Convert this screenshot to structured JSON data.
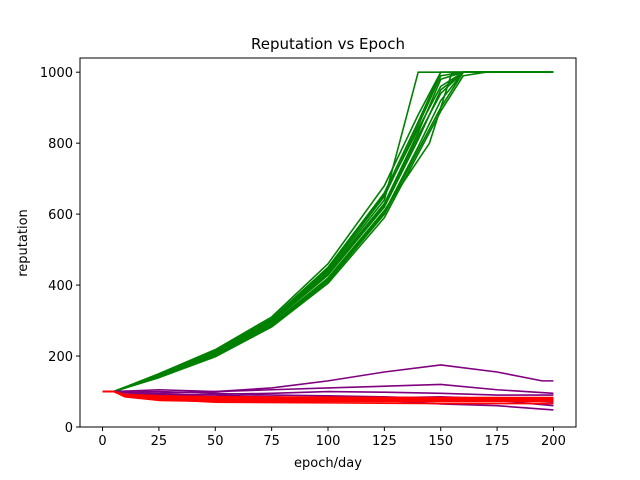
{
  "chart_data": {
    "type": "line",
    "title": "Reputation vs Epoch",
    "xlabel": "epoch/day",
    "ylabel": "reputation",
    "xlim": [
      -10,
      210
    ],
    "ylim": [
      0,
      1040
    ],
    "xticks": [
      0,
      25,
      50,
      75,
      100,
      125,
      150,
      175,
      200
    ],
    "yticks": [
      0,
      200,
      400,
      600,
      800,
      1000
    ],
    "grid": false,
    "legend": "none",
    "colors": {
      "green": "#008000",
      "purple": "#800080",
      "red": "#ff0000"
    },
    "series": [
      {
        "color": "green",
        "x": [
          0,
          5,
          25,
          50,
          75,
          100,
          125,
          140,
          150,
          160,
          170,
          200
        ],
        "y": [
          100,
          100,
          145,
          210,
          300,
          440,
          640,
          1000,
          1000,
          1000,
          1000,
          1000
        ]
      },
      {
        "color": "green",
        "x": [
          0,
          5,
          25,
          50,
          75,
          100,
          125,
          145,
          155,
          165,
          200
        ],
        "y": [
          100,
          100,
          142,
          205,
          290,
          420,
          610,
          800,
          1000,
          1000,
          1000
        ]
      },
      {
        "color": "green",
        "x": [
          0,
          5,
          25,
          50,
          75,
          100,
          125,
          140,
          150,
          160,
          170,
          200
        ],
        "y": [
          100,
          100,
          148,
          215,
          305,
          450,
          660,
          860,
          1000,
          1000,
          1000,
          1000
        ]
      },
      {
        "color": "green",
        "x": [
          0,
          5,
          25,
          50,
          75,
          100,
          125,
          140,
          150,
          160,
          170,
          200
        ],
        "y": [
          100,
          100,
          140,
          200,
          285,
          410,
          600,
          780,
          900,
          1000,
          1000,
          1000
        ]
      },
      {
        "color": "green",
        "x": [
          0,
          5,
          25,
          50,
          75,
          100,
          125,
          140,
          150,
          160,
          170,
          200
        ],
        "y": [
          100,
          100,
          146,
          212,
          298,
          435,
          630,
          830,
          980,
          1000,
          1000,
          1000
        ]
      },
      {
        "color": "green",
        "x": [
          0,
          5,
          25,
          50,
          75,
          100,
          125,
          140,
          150,
          160,
          170,
          200
        ],
        "y": [
          100,
          100,
          143,
          207,
          295,
          428,
          620,
          810,
          950,
          1000,
          1000,
          1000
        ]
      },
      {
        "color": "green",
        "x": [
          0,
          5,
          25,
          50,
          75,
          100,
          125,
          140,
          150,
          160,
          170,
          200
        ],
        "y": [
          100,
          100,
          150,
          218,
          310,
          460,
          680,
          880,
          1000,
          1000,
          1000,
          1000
        ]
      },
      {
        "color": "green",
        "x": [
          0,
          5,
          25,
          50,
          75,
          100,
          125,
          140,
          150,
          160,
          170,
          200
        ],
        "y": [
          100,
          100,
          139,
          198,
          282,
          405,
          590,
          770,
          890,
          990,
          1000,
          1000
        ]
      },
      {
        "color": "green",
        "x": [
          0,
          5,
          25,
          50,
          75,
          100,
          125,
          140,
          150,
          160,
          170,
          200
        ],
        "y": [
          100,
          100,
          144,
          209,
          300,
          445,
          650,
          850,
          990,
          1000,
          1000,
          1000
        ]
      },
      {
        "color": "green",
        "x": [
          0,
          5,
          25,
          50,
          75,
          100,
          125,
          140,
          150,
          160,
          170,
          200
        ],
        "y": [
          100,
          100,
          147,
          214,
          303,
          448,
          655,
          840,
          960,
          1000,
          1000,
          1000
        ]
      },
      {
        "color": "green",
        "x": [
          0,
          5,
          25,
          50,
          75,
          100,
          125,
          140,
          150,
          160,
          170,
          200
        ],
        "y": [
          100,
          100,
          141,
          203,
          288,
          415,
          605,
          790,
          920,
          1000,
          1000,
          1000
        ]
      },
      {
        "color": "green",
        "x": [
          0,
          5,
          25,
          50,
          75,
          100,
          125,
          140,
          150,
          160,
          170,
          200
        ],
        "y": [
          100,
          100,
          145,
          211,
          296,
          430,
          625,
          820,
          940,
          1000,
          1000,
          1000
        ]
      },
      {
        "color": "purple",
        "x": [
          0,
          5,
          25,
          50,
          75,
          100,
          125,
          150,
          175,
          195,
          200
        ],
        "y": [
          100,
          100,
          105,
          100,
          110,
          130,
          155,
          175,
          155,
          130,
          130
        ]
      },
      {
        "color": "purple",
        "x": [
          0,
          5,
          25,
          50,
          75,
          100,
          125,
          150,
          175,
          200
        ],
        "y": [
          100,
          100,
          95,
          100,
          105,
          110,
          115,
          120,
          105,
          95
        ]
      },
      {
        "color": "purple",
        "x": [
          0,
          5,
          25,
          50,
          75,
          100,
          125,
          150,
          175,
          200
        ],
        "y": [
          100,
          100,
          92,
          90,
          85,
          80,
          82,
          85,
          80,
          70
        ]
      },
      {
        "color": "purple",
        "x": [
          0,
          5,
          25,
          50,
          75,
          100,
          125,
          150,
          175,
          200
        ],
        "y": [
          100,
          100,
          100,
          95,
          90,
          88,
          85,
          80,
          75,
          60
        ]
      },
      {
        "color": "purple",
        "x": [
          0,
          5,
          25,
          50,
          75,
          100,
          125,
          150,
          175,
          200
        ],
        "y": [
          100,
          100,
          90,
          85,
          80,
          78,
          75,
          65,
          60,
          48
        ]
      },
      {
        "color": "purple",
        "x": [
          0,
          5,
          25,
          50,
          75,
          100,
          125,
          150,
          175,
          200
        ],
        "y": [
          100,
          100,
          88,
          92,
          95,
          100,
          98,
          95,
          90,
          90
        ]
      },
      {
        "color": "red",
        "x": [
          0,
          5,
          10,
          25,
          50,
          100,
          150,
          200
        ],
        "y": [
          100,
          100,
          85,
          75,
          72,
          72,
          72,
          72
        ]
      },
      {
        "color": "red",
        "x": [
          0,
          5,
          10,
          25,
          50,
          100,
          150,
          200
        ],
        "y": [
          100,
          100,
          90,
          85,
          82,
          80,
          80,
          80
        ]
      },
      {
        "color": "red",
        "x": [
          0,
          5,
          10,
          25,
          50,
          100,
          150,
          200
        ],
        "y": [
          100,
          100,
          88,
          78,
          70,
          68,
          66,
          66
        ]
      },
      {
        "color": "red",
        "x": [
          0,
          5,
          10,
          25,
          50,
          100,
          150,
          200
        ],
        "y": [
          100,
          100,
          92,
          88,
          85,
          84,
          83,
          83
        ]
      },
      {
        "color": "red",
        "x": [
          0,
          5,
          10,
          25,
          50,
          100,
          150,
          200
        ],
        "y": [
          100,
          100,
          86,
          80,
          75,
          74,
          74,
          74
        ]
      },
      {
        "color": "red",
        "x": [
          0,
          5,
          10,
          25,
          50,
          100,
          150,
          200
        ],
        "y": [
          100,
          100,
          87,
          82,
          78,
          77,
          77,
          77
        ]
      }
    ]
  }
}
